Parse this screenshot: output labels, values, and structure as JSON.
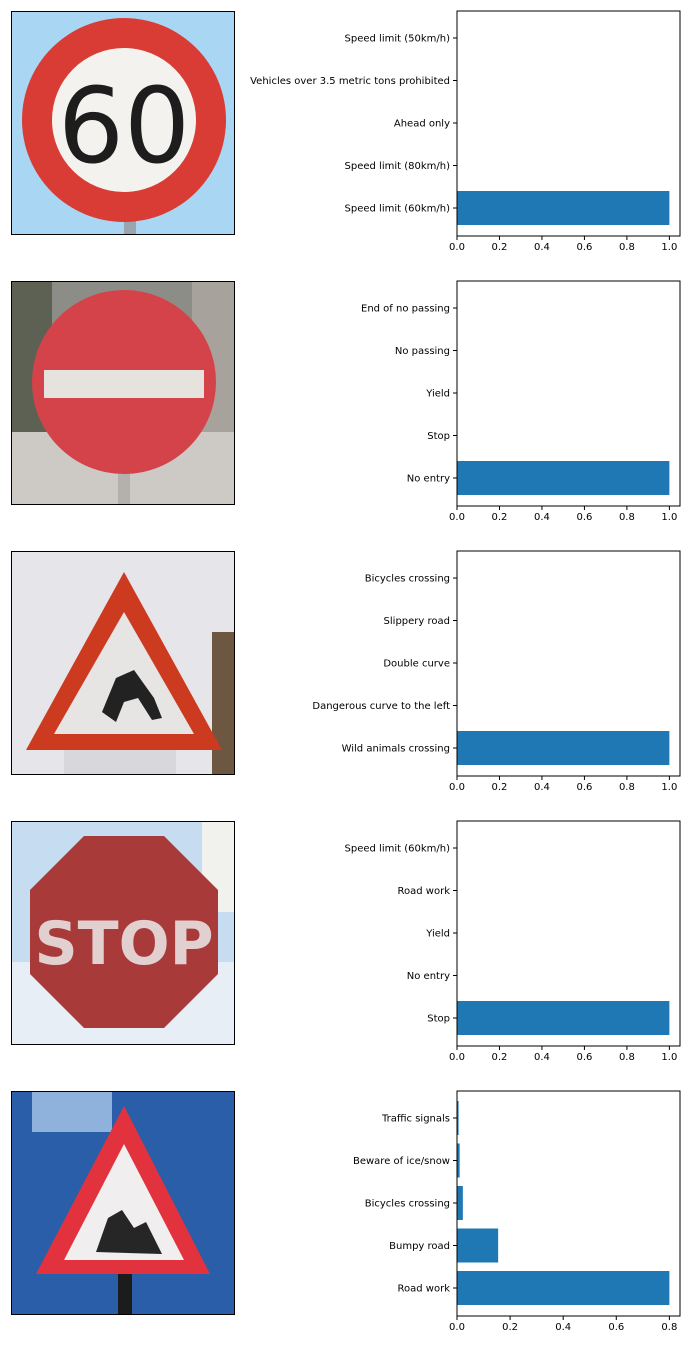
{
  "colors": {
    "bar": "#1f77b4",
    "axis": "#000000",
    "background": "#ffffff"
  },
  "chart_data": [
    {
      "type": "bar",
      "orientation": "horizontal",
      "image": "speed-limit-60-sign",
      "categories": [
        "Speed limit (60km/h)",
        "Speed limit (80km/h)",
        "Ahead only",
        "Vehicles over 3.5 metric tons prohibited",
        "Speed limit (50km/h)"
      ],
      "values": [
        1.0,
        0.0,
        0.0,
        0.0,
        0.0
      ],
      "xlim": [
        0,
        1.05
      ],
      "xticks": [
        "0.0",
        "0.2",
        "0.4",
        "0.6",
        "0.8",
        "1.0"
      ],
      "xtick_values": [
        0,
        0.2,
        0.4,
        0.6,
        0.8,
        1.0
      ],
      "grid": false
    },
    {
      "type": "bar",
      "orientation": "horizontal",
      "image": "no-entry-sign",
      "categories": [
        "No entry",
        "Stop",
        "Yield",
        "No passing",
        "End of no passing"
      ],
      "values": [
        1.0,
        0.0,
        0.0,
        0.0,
        0.0
      ],
      "xlim": [
        0,
        1.05
      ],
      "xticks": [
        "0.0",
        "0.2",
        "0.4",
        "0.6",
        "0.8",
        "1.0"
      ],
      "xtick_values": [
        0,
        0.2,
        0.4,
        0.6,
        0.8,
        1.0
      ],
      "grid": false
    },
    {
      "type": "bar",
      "orientation": "horizontal",
      "image": "wild-animals-crossing-sign",
      "categories": [
        "Wild animals crossing",
        "Dangerous curve to the left",
        "Double curve",
        "Slippery road",
        "Bicycles crossing"
      ],
      "values": [
        1.0,
        0.0,
        0.0,
        0.0,
        0.0
      ],
      "xlim": [
        0,
        1.05
      ],
      "xticks": [
        "0.0",
        "0.2",
        "0.4",
        "0.6",
        "0.8",
        "1.0"
      ],
      "xtick_values": [
        0,
        0.2,
        0.4,
        0.6,
        0.8,
        1.0
      ],
      "grid": false
    },
    {
      "type": "bar",
      "orientation": "horizontal",
      "image": "stop-sign",
      "categories": [
        "Stop",
        "No entry",
        "Yield",
        "Road work",
        "Speed limit (60km/h)"
      ],
      "values": [
        1.0,
        0.0,
        0.0,
        0.0,
        0.0
      ],
      "xlim": [
        0,
        1.05
      ],
      "xticks": [
        "0.0",
        "0.2",
        "0.4",
        "0.6",
        "0.8",
        "1.0"
      ],
      "xtick_values": [
        0,
        0.2,
        0.4,
        0.6,
        0.8,
        1.0
      ],
      "grid": false
    },
    {
      "type": "bar",
      "orientation": "horizontal",
      "image": "road-work-sign",
      "categories": [
        "Road work",
        "Bumpy road",
        "Bicycles crossing",
        "Beware of ice/snow",
        "Traffic signals"
      ],
      "values": [
        0.8,
        0.155,
        0.022,
        0.01,
        0.006
      ],
      "xlim": [
        0,
        0.84
      ],
      "xticks": [
        "0.0",
        "0.2",
        "0.4",
        "0.6",
        "0.8"
      ],
      "xtick_values": [
        0,
        0.2,
        0.4,
        0.6,
        0.8
      ],
      "grid": false
    }
  ]
}
